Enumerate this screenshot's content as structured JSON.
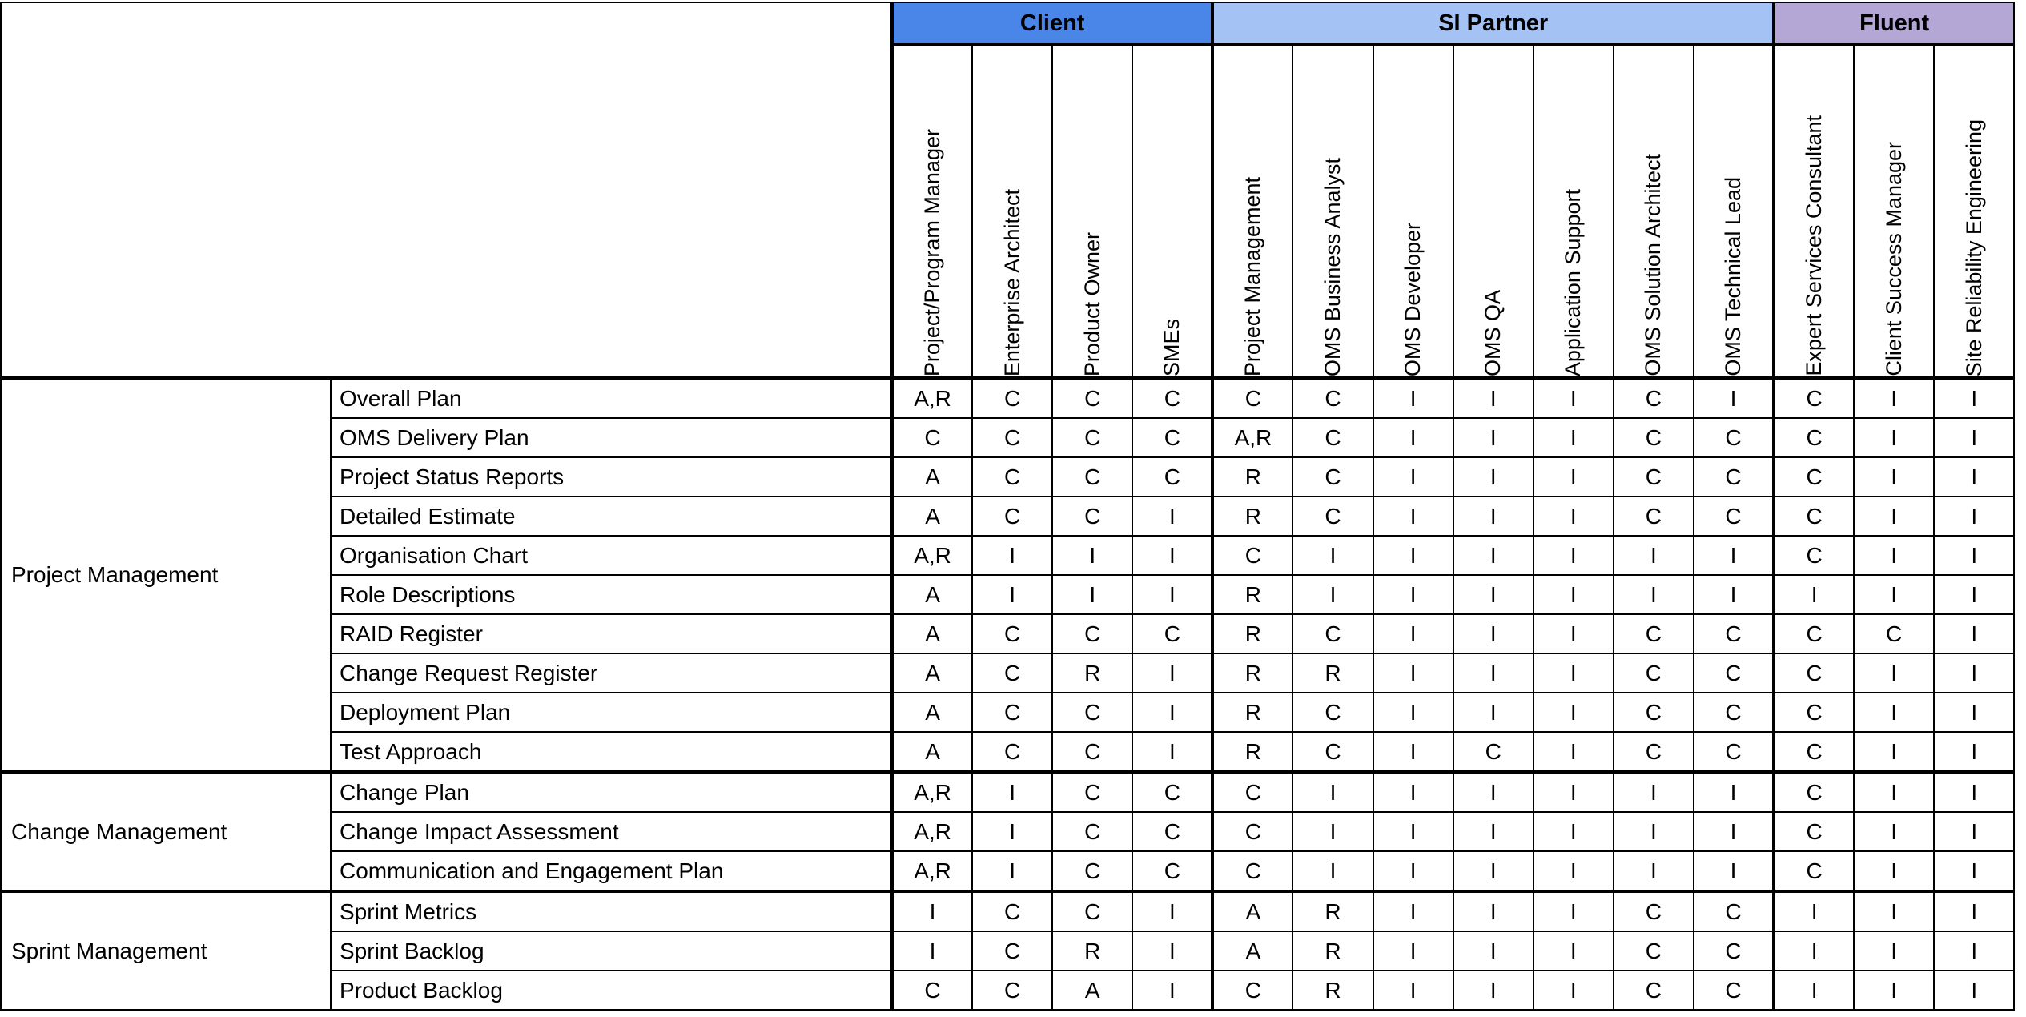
{
  "groups": [
    {
      "label": "Client",
      "color": "#4a86e8",
      "span": 4
    },
    {
      "label": "SI Partner",
      "color": "#a4c2f4",
      "span": 7
    },
    {
      "label": "Fluent",
      "color": "#b4a7d6",
      "span": 3
    }
  ],
  "roles": [
    "Project/Program Manager",
    "Enterprise Architect",
    "Product Owner",
    "SMEs",
    "Project Management",
    "OMS Business Analyst",
    "OMS Developer",
    "OMS QA",
    "Application Support",
    "OMS Solution Architect",
    "OMS Technical Lead",
    "Expert Services Consultant",
    "Client Success Manager",
    "Site Reliability Engineering"
  ],
  "sections": [
    {
      "category": "Project Management",
      "rows": [
        {
          "deliverable": "Overall Plan",
          "values": [
            "A,R",
            "C",
            "C",
            "C",
            "C",
            "C",
            "I",
            "I",
            "I",
            "C",
            "I",
            "C",
            "I",
            "I"
          ]
        },
        {
          "deliverable": "OMS Delivery Plan",
          "values": [
            "C",
            "C",
            "C",
            "C",
            "A,R",
            "C",
            "I",
            "I",
            "I",
            "C",
            "C",
            "C",
            "I",
            "I"
          ]
        },
        {
          "deliverable": "Project Status Reports",
          "values": [
            "A",
            "C",
            "C",
            "C",
            "R",
            "C",
            "I",
            "I",
            "I",
            "C",
            "C",
            "C",
            "I",
            "I"
          ]
        },
        {
          "deliverable": "Detailed Estimate",
          "values": [
            "A",
            "C",
            "C",
            "I",
            "R",
            "C",
            "I",
            "I",
            "I",
            "C",
            "C",
            "C",
            "I",
            "I"
          ]
        },
        {
          "deliverable": "Organisation Chart",
          "values": [
            "A,R",
            "I",
            "I",
            "I",
            "C",
            "I",
            "I",
            "I",
            "I",
            "I",
            "I",
            "C",
            "I",
            "I"
          ]
        },
        {
          "deliverable": "Role Descriptions",
          "values": [
            "A",
            "I",
            "I",
            "I",
            "R",
            "I",
            "I",
            "I",
            "I",
            "I",
            "I",
            "I",
            "I",
            "I"
          ]
        },
        {
          "deliverable": "RAID Register",
          "values": [
            "A",
            "C",
            "C",
            "C",
            "R",
            "C",
            "I",
            "I",
            "I",
            "C",
            "C",
            "C",
            "C",
            "I"
          ]
        },
        {
          "deliverable": "Change Request Register",
          "values": [
            "A",
            "C",
            "R",
            "I",
            "R",
            "R",
            "I",
            "I",
            "I",
            "C",
            "C",
            "C",
            "I",
            "I"
          ]
        },
        {
          "deliverable": "Deployment Plan",
          "values": [
            "A",
            "C",
            "C",
            "I",
            "R",
            "C",
            "I",
            "I",
            "I",
            "C",
            "C",
            "C",
            "I",
            "I"
          ]
        },
        {
          "deliverable": "Test Approach",
          "values": [
            "A",
            "C",
            "C",
            "I",
            "R",
            "C",
            "I",
            "C",
            "I",
            "C",
            "C",
            "C",
            "I",
            "I"
          ]
        }
      ]
    },
    {
      "category": "Change Management",
      "rows": [
        {
          "deliverable": "Change Plan",
          "values": [
            "A,R",
            "I",
            "C",
            "C",
            "C",
            "I",
            "I",
            "I",
            "I",
            "I",
            "I",
            "C",
            "I",
            "I"
          ]
        },
        {
          "deliverable": "Change Impact Assessment",
          "values": [
            "A,R",
            "I",
            "C",
            "C",
            "C",
            "I",
            "I",
            "I",
            "I",
            "I",
            "I",
            "C",
            "I",
            "I"
          ]
        },
        {
          "deliverable": "Communication and Engagement Plan",
          "values": [
            "A,R",
            "I",
            "C",
            "C",
            "C",
            "I",
            "I",
            "I",
            "I",
            "I",
            "I",
            "C",
            "I",
            "I"
          ]
        }
      ]
    },
    {
      "category": "Sprint Management",
      "rows": [
        {
          "deliverable": "Sprint Metrics",
          "values": [
            "I",
            "C",
            "C",
            "I",
            "A",
            "R",
            "I",
            "I",
            "I",
            "C",
            "C",
            "I",
            "I",
            "I"
          ]
        },
        {
          "deliverable": "Sprint Backlog",
          "values": [
            "I",
            "C",
            "R",
            "I",
            "A",
            "R",
            "I",
            "I",
            "I",
            "C",
            "C",
            "I",
            "I",
            "I"
          ]
        },
        {
          "deliverable": "Product Backlog",
          "values": [
            "C",
            "C",
            "A",
            "I",
            "C",
            "R",
            "I",
            "I",
            "I",
            "C",
            "C",
            "I",
            "I",
            "I"
          ]
        }
      ]
    }
  ]
}
